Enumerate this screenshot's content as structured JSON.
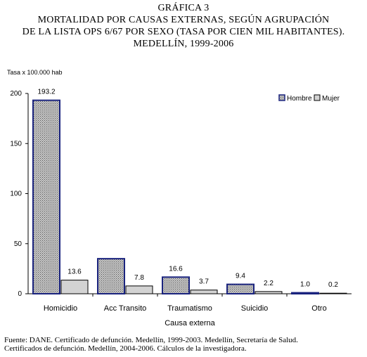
{
  "header": {
    "line1": "GRÁFICA 3",
    "line2": "MORTALIDAD POR CAUSAS EXTERNAS, SEGÚN AGRUPACIÓN",
    "line3": "DE LA LISTA OPS 6/67 POR SEXO (TASA POR CIEN MIL HABITANTES).",
    "line4": "MEDELLÍN, 1999-2006"
  },
  "footnote": {
    "line1": "Fuente: DANE. Certificado de defunción. Medellín, 1999-2003. Medellín, Secretaría de Salud.",
    "line2": "Certificados de defunción. Medellín, 2004-2006. Cálculos de la investigadora."
  },
  "chart_data": {
    "type": "bar",
    "ylabel": "Tasa x 100.000 hab",
    "xlabel": "Causa externa",
    "ylim": [
      0,
      200
    ],
    "yticks": [
      0,
      50,
      100,
      150,
      200
    ],
    "categories": [
      "Homicidio",
      "Acc Transito",
      "Traumatismo",
      "Suicidio",
      "Otro"
    ],
    "series": [
      {
        "name": "Hombre",
        "values": [
          193.2,
          35.0,
          16.6,
          9.4,
          1.0
        ],
        "labels": [
          "193.2",
          "",
          "16.6",
          "9.4",
          "1.0"
        ],
        "color": "#1a237e"
      },
      {
        "name": "Mujer",
        "values": [
          13.6,
          7.8,
          3.7,
          2.2,
          0.2
        ],
        "labels": [
          "13.6",
          "7.8",
          "3.7",
          "2.2",
          "0.2"
        ],
        "color": "#d3d3d3"
      }
    ],
    "legend_position": "top-right",
    "grid": false
  }
}
